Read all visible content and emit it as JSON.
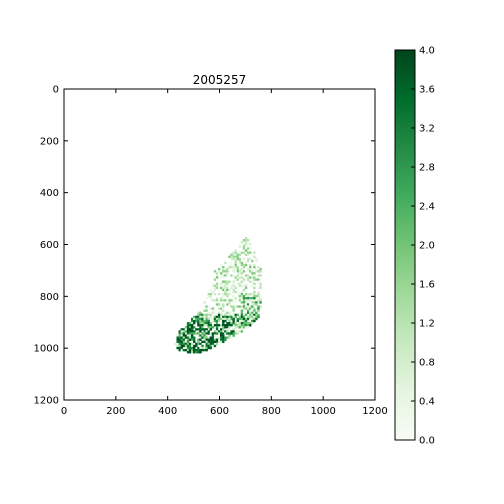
{
  "chart_data": {
    "type": "heatmap",
    "title": "2005257",
    "xlabel": "",
    "ylabel": "",
    "xlim": [
      0,
      1200
    ],
    "ylim": [
      1200,
      0
    ],
    "x_ticks": [
      "0",
      "200",
      "400",
      "600",
      "800",
      "1000",
      "1200"
    ],
    "y_ticks": [
      "0",
      "200",
      "400",
      "600",
      "800",
      "1000",
      "1200"
    ],
    "colormap": "Greens",
    "color_range": [
      0.0,
      4.0
    ],
    "colorbar_ticks": [
      "0.0",
      "0.4",
      "0.8",
      "1.2",
      "1.6",
      "2.0",
      "2.4",
      "2.8",
      "3.2",
      "3.6",
      "4.0"
    ],
    "colormap_stops": [
      "#f7fcf5",
      "#e5f5e0",
      "#c7e9c0",
      "#a1d99b",
      "#74c476",
      "#41ab5d",
      "#238b45",
      "#006d2c",
      "#00441b"
    ],
    "data_region_outline": [
      [
        705,
        565
      ],
      [
        760,
        690
      ],
      [
        765,
        800
      ],
      [
        752,
        880
      ],
      [
        715,
        920
      ],
      [
        650,
        955
      ],
      [
        600,
        985
      ],
      [
        550,
        1010
      ],
      [
        505,
        1020
      ],
      [
        440,
        1010
      ],
      [
        420,
        970
      ],
      [
        455,
        920
      ],
      [
        500,
        880
      ],
      [
        530,
        835
      ],
      [
        555,
        790
      ],
      [
        570,
        745
      ],
      [
        585,
        690
      ],
      [
        630,
        650
      ],
      [
        670,
        605
      ]
    ],
    "grid": false,
    "legend": "none"
  }
}
